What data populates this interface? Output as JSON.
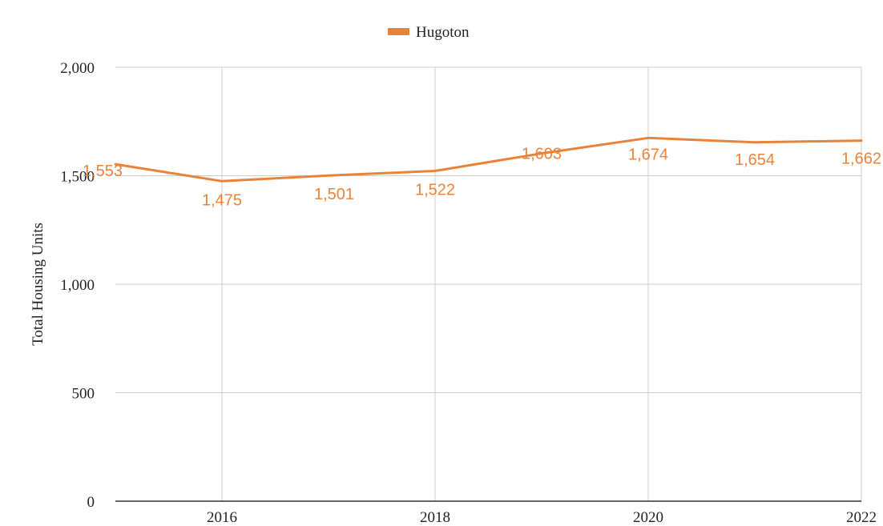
{
  "chart_data": {
    "type": "line",
    "title": "",
    "xlabel": "",
    "ylabel": "Total Housing Units",
    "x": [
      2015,
      2016,
      2017,
      2018,
      2019,
      2020,
      2021,
      2022
    ],
    "series": [
      {
        "name": "Hugoton",
        "color": "#e8833a",
        "values": [
          1553,
          1475,
          1501,
          1522,
          1603,
          1674,
          1654,
          1662
        ],
        "labels": [
          "1,553",
          "1,475",
          "1,501",
          "1,522",
          "1,603",
          "1,674",
          "1,654",
          "1,662"
        ]
      }
    ],
    "xticks": [
      2016,
      2018,
      2020,
      2022
    ],
    "xtick_labels": [
      "2016",
      "2018",
      "2020",
      "2022"
    ],
    "yticks": [
      0,
      500,
      1000,
      1500,
      2000
    ],
    "ytick_labels": [
      "0",
      "500",
      "1,000",
      "1,500",
      "2,000"
    ],
    "xlim": [
      2015,
      2022
    ],
    "ylim": [
      0,
      2000
    ],
    "grid": true,
    "legend": "top-center"
  }
}
